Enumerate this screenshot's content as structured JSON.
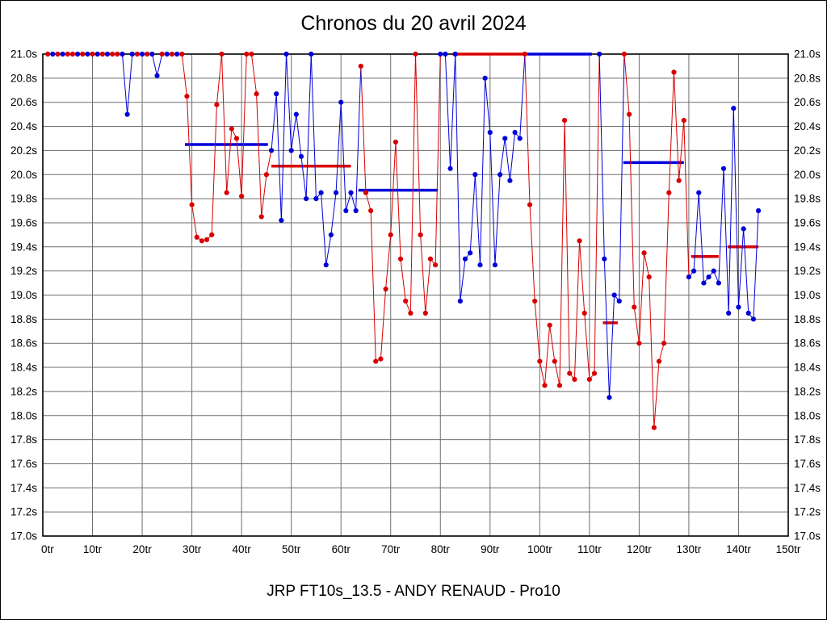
{
  "title": "Chronos du 20 avril 2024",
  "footer": "JRP FT10s_13.5 - ANDY RENAUD - Pro10",
  "chart_data": {
    "type": "line",
    "title": "Chronos du 20 avril 2024",
    "x_unit": "tr",
    "y_unit": "s",
    "xlim": [
      0,
      150
    ],
    "ylim": [
      17.0,
      21.0
    ],
    "x_step": 10,
    "y_step": 0.2,
    "grid": true,
    "x_tick_labels": [
      "0tr",
      "10tr",
      "20tr",
      "30tr",
      "40tr",
      "50tr",
      "60tr",
      "70tr",
      "80tr",
      "90tr",
      "100tr",
      "110tr",
      "120tr",
      "130tr",
      "140tr",
      "150tr"
    ],
    "y_tick_labels": [
      "21.0s",
      "20.8s",
      "20.6s",
      "20.4s",
      "20.2s",
      "20.0s",
      "19.8s",
      "19.6s",
      "19.4s",
      "19.2s",
      "19.0s",
      "18.8s",
      "18.6s",
      "18.4s",
      "18.2s",
      "18.0s",
      "17.8s",
      "17.6s",
      "17.4s",
      "17.2s",
      "17.0s"
    ],
    "colors": {
      "red": "#d80000",
      "blue": "#0000d8",
      "grid": "#6e6e6e",
      "axis": "#000000"
    },
    "points": [
      [
        1,
        21.0,
        "r"
      ],
      [
        2,
        21.0,
        "b"
      ],
      [
        3,
        21.0,
        "r"
      ],
      [
        4,
        21.0,
        "b"
      ],
      [
        5,
        21.0,
        "r"
      ],
      [
        6,
        21.0,
        "r"
      ],
      [
        7,
        21.0,
        "b"
      ],
      [
        8,
        21.0,
        "r"
      ],
      [
        9,
        21.0,
        "b"
      ],
      [
        10,
        21.0,
        "r"
      ],
      [
        11,
        21.0,
        "b"
      ],
      [
        12,
        21.0,
        "r"
      ],
      [
        13,
        21.0,
        "b"
      ],
      [
        14,
        21.0,
        "r"
      ],
      [
        15,
        21.0,
        "r"
      ],
      [
        16,
        21.0,
        "b"
      ],
      [
        17,
        20.5,
        "b"
      ],
      [
        18,
        21.0,
        "b"
      ],
      [
        19,
        21.0,
        "r"
      ],
      [
        20,
        21.0,
        "b"
      ],
      [
        21,
        21.0,
        "r"
      ],
      [
        22,
        21.0,
        "b"
      ],
      [
        23,
        20.82,
        "b"
      ],
      [
        24,
        21.0,
        "r"
      ],
      [
        25,
        21.0,
        "b"
      ],
      [
        26,
        21.0,
        "r"
      ],
      [
        27,
        21.0,
        "b"
      ],
      [
        28,
        21.0,
        "r"
      ],
      [
        29,
        20.65,
        "r"
      ],
      [
        30,
        19.75,
        "r"
      ],
      [
        31,
        19.48,
        "r"
      ],
      [
        32,
        19.45,
        "r"
      ],
      [
        33,
        19.46,
        "r"
      ],
      [
        34,
        19.5,
        "r"
      ],
      [
        35,
        20.58,
        "r"
      ],
      [
        36,
        21.0,
        "r"
      ],
      [
        37,
        19.85,
        "r"
      ],
      [
        38,
        20.38,
        "r"
      ],
      [
        39,
        20.3,
        "r"
      ],
      [
        40,
        19.82,
        "r"
      ],
      [
        41,
        21.0,
        "r"
      ],
      [
        42,
        21.0,
        "r"
      ],
      [
        43,
        20.67,
        "r"
      ],
      [
        44,
        19.65,
        "r"
      ],
      [
        45,
        20.0,
        "r"
      ],
      [
        46,
        20.2,
        "b"
      ],
      [
        47,
        20.67,
        "b"
      ],
      [
        48,
        19.62,
        "b"
      ],
      [
        49,
        21.0,
        "b"
      ],
      [
        50,
        20.2,
        "b"
      ],
      [
        51,
        20.5,
        "b"
      ],
      [
        52,
        20.15,
        "b"
      ],
      [
        53,
        19.8,
        "b"
      ],
      [
        54,
        21.0,
        "b"
      ],
      [
        55,
        19.8,
        "b"
      ],
      [
        56,
        19.85,
        "b"
      ],
      [
        57,
        19.25,
        "b"
      ],
      [
        58,
        19.5,
        "b"
      ],
      [
        59,
        19.85,
        "b"
      ],
      [
        60,
        20.6,
        "b"
      ],
      [
        61,
        19.7,
        "b"
      ],
      [
        62,
        19.85,
        "b"
      ],
      [
        63,
        19.7,
        "b"
      ],
      [
        64,
        20.9,
        "r"
      ],
      [
        65,
        19.85,
        "r"
      ],
      [
        66,
        19.7,
        "r"
      ],
      [
        67,
        18.45,
        "r"
      ],
      [
        68,
        18.47,
        "r"
      ],
      [
        69,
        19.05,
        "r"
      ],
      [
        70,
        19.5,
        "r"
      ],
      [
        71,
        20.27,
        "r"
      ],
      [
        72,
        19.3,
        "r"
      ],
      [
        73,
        18.95,
        "r"
      ],
      [
        74,
        18.85,
        "r"
      ],
      [
        75,
        21.0,
        "r"
      ],
      [
        76,
        19.5,
        "r"
      ],
      [
        77,
        18.85,
        "r"
      ],
      [
        78,
        19.3,
        "r"
      ],
      [
        79,
        19.25,
        "r"
      ],
      [
        80,
        21.0,
        "b"
      ],
      [
        81,
        21.0,
        "b"
      ],
      [
        82,
        20.05,
        "b"
      ],
      [
        83,
        21.0,
        "b"
      ],
      [
        84,
        18.95,
        "b"
      ],
      [
        85,
        19.3,
        "b"
      ],
      [
        86,
        19.35,
        "b"
      ],
      [
        87,
        20.0,
        "b"
      ],
      [
        88,
        19.25,
        "b"
      ],
      [
        89,
        20.8,
        "b"
      ],
      [
        90,
        20.35,
        "b"
      ],
      [
        91,
        19.25,
        "b"
      ],
      [
        92,
        20.0,
        "b"
      ],
      [
        93,
        20.3,
        "b"
      ],
      [
        94,
        19.95,
        "b"
      ],
      [
        95,
        20.35,
        "b"
      ],
      [
        96,
        20.3,
        "b"
      ],
      [
        97,
        21.0,
        "r"
      ],
      [
        98,
        19.75,
        "r"
      ],
      [
        99,
        18.95,
        "r"
      ],
      [
        100,
        18.45,
        "r"
      ],
      [
        101,
        18.25,
        "r"
      ],
      [
        102,
        18.75,
        "r"
      ],
      [
        103,
        18.45,
        "r"
      ],
      [
        104,
        18.25,
        "r"
      ],
      [
        105,
        20.45,
        "r"
      ],
      [
        106,
        18.35,
        "r"
      ],
      [
        107,
        18.3,
        "r"
      ],
      [
        108,
        19.45,
        "r"
      ],
      [
        109,
        18.85,
        "r"
      ],
      [
        110,
        18.3,
        "r"
      ],
      [
        111,
        18.35,
        "r"
      ],
      [
        112,
        21.0,
        "b"
      ],
      [
        113,
        19.3,
        "b"
      ],
      [
        114,
        18.15,
        "b"
      ],
      [
        115,
        19.0,
        "b"
      ],
      [
        116,
        18.95,
        "b"
      ],
      [
        117,
        21.0,
        "r"
      ],
      [
        118,
        20.5,
        "r"
      ],
      [
        119,
        18.9,
        "r"
      ],
      [
        120,
        18.6,
        "r"
      ],
      [
        121,
        19.35,
        "r"
      ],
      [
        122,
        19.15,
        "r"
      ],
      [
        123,
        17.9,
        "r"
      ],
      [
        124,
        18.45,
        "r"
      ],
      [
        125,
        18.6,
        "r"
      ],
      [
        126,
        19.85,
        "r"
      ],
      [
        127,
        20.85,
        "r"
      ],
      [
        128,
        19.95,
        "r"
      ],
      [
        129,
        20.45,
        "r"
      ],
      [
        130,
        19.15,
        "b"
      ],
      [
        131,
        19.2,
        "b"
      ],
      [
        132,
        19.85,
        "b"
      ],
      [
        133,
        19.1,
        "b"
      ],
      [
        134,
        19.15,
        "b"
      ],
      [
        135,
        19.2,
        "b"
      ],
      [
        136,
        19.1,
        "b"
      ],
      [
        137,
        20.05,
        "b"
      ],
      [
        138,
        18.85,
        "b"
      ],
      [
        139,
        20.55,
        "b"
      ],
      [
        140,
        18.9,
        "b"
      ],
      [
        141,
        19.55,
        "b"
      ],
      [
        142,
        18.85,
        "b"
      ],
      [
        143,
        18.8,
        "b"
      ],
      [
        144,
        19.7,
        "b"
      ]
    ],
    "avg_segments": [
      {
        "x1": 28.6,
        "x2": 45.3,
        "y": 20.25,
        "c": "b"
      },
      {
        "x1": 46.0,
        "x2": 62.0,
        "y": 20.07,
        "c": "r"
      },
      {
        "x1": 63.5,
        "x2": 79.5,
        "y": 19.87,
        "c": "b"
      },
      {
        "x1": 82.5,
        "x2": 97.0,
        "y": 21.0,
        "c": "r"
      },
      {
        "x1": 97.5,
        "x2": 110.5,
        "y": 21.0,
        "c": "b"
      },
      {
        "x1": 112.7,
        "x2": 115.7,
        "y": 18.77,
        "c": "r"
      },
      {
        "x1": 116.8,
        "x2": 129.0,
        "y": 20.1,
        "c": "b"
      },
      {
        "x1": 130.5,
        "x2": 136.0,
        "y": 19.32,
        "c": "r"
      },
      {
        "x1": 137.8,
        "x2": 144.0,
        "y": 19.4,
        "c": "r"
      }
    ]
  }
}
